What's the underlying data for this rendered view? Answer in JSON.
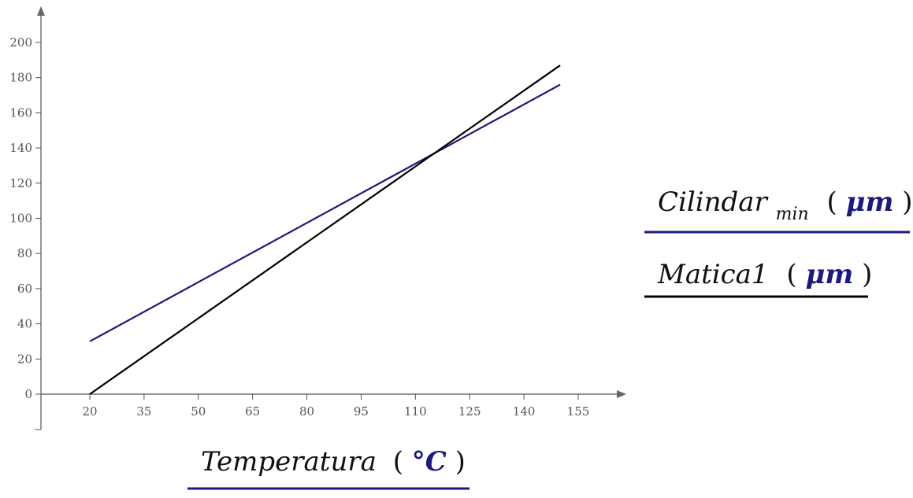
{
  "chart_data": {
    "type": "line",
    "x_ticks": [
      20,
      35,
      50,
      65,
      80,
      95,
      110,
      125,
      140,
      155
    ],
    "y_ticks": [
      0,
      20,
      40,
      60,
      80,
      100,
      120,
      140,
      160,
      180,
      200
    ],
    "xlim": [
      5,
      170
    ],
    "ylim": [
      -20,
      215
    ],
    "grid": false,
    "legend_position": "right",
    "xlabel": {
      "name": "Temperatura",
      "open": "(",
      "unit": "°C",
      "close": ")"
    },
    "series": [
      {
        "name_main": "Cilindar",
        "name_sub": "min",
        "unit": "μm",
        "color": "#1a1a80",
        "x": [
          20,
          150
        ],
        "y": [
          30,
          176
        ]
      },
      {
        "name_main": "Matica1",
        "name_sub": "",
        "unit": "μm",
        "color": "#000000",
        "x": [
          20,
          150
        ],
        "y": [
          0,
          187
        ]
      }
    ],
    "unit_color": "#1a1a80"
  }
}
